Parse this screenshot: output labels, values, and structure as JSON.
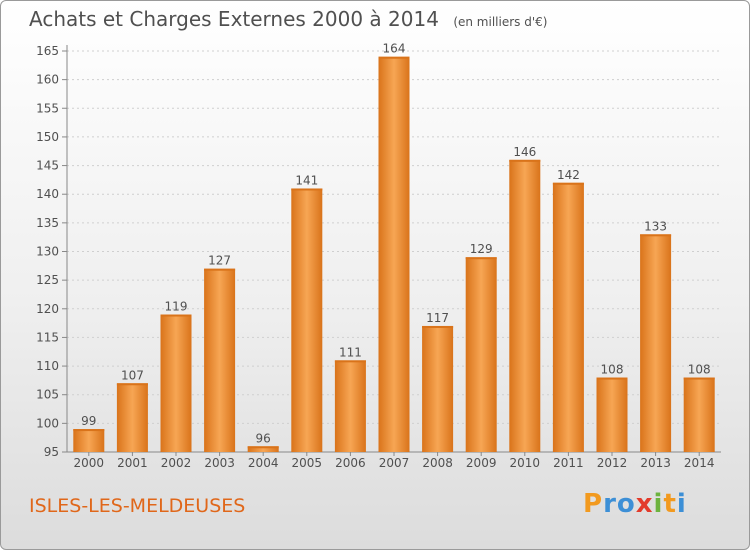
{
  "title": "Achats et Charges Externes 2000 à 2014",
  "unit": "(en milliers d'€)",
  "commune": "ISLES-LES-MELDEUSES",
  "logo": {
    "letters": [
      "P",
      "r",
      "o",
      "x",
      "i",
      "t",
      "i"
    ],
    "colors": [
      "#f29a1f",
      "#3c8fd6",
      "#3c8fd6",
      "#e33b2b",
      "#6db33f",
      "#f29a1f",
      "#3c8fd6"
    ]
  },
  "colors": {
    "bar_light": "#f7a654",
    "bar_dark": "#d9731a",
    "grid": "#cfcfcf",
    "text": "#505050"
  },
  "chart_data": {
    "type": "bar",
    "title": "Achats et Charges Externes 2000 à 2014",
    "subtitle": "(en milliers d'€)",
    "categories": [
      "2000",
      "2001",
      "2002",
      "2003",
      "2004",
      "2005",
      "2006",
      "2007",
      "2008",
      "2009",
      "2010",
      "2011",
      "2012",
      "2013",
      "2014"
    ],
    "values": [
      99,
      107,
      119,
      127,
      96,
      141,
      111,
      164,
      117,
      129,
      146,
      142,
      108,
      133,
      108
    ],
    "ylim": [
      95,
      165
    ],
    "yticks": [
      95,
      100,
      105,
      110,
      115,
      120,
      125,
      130,
      135,
      140,
      145,
      150,
      155,
      160,
      165
    ],
    "grid": true,
    "xlabel": "",
    "ylabel": ""
  }
}
